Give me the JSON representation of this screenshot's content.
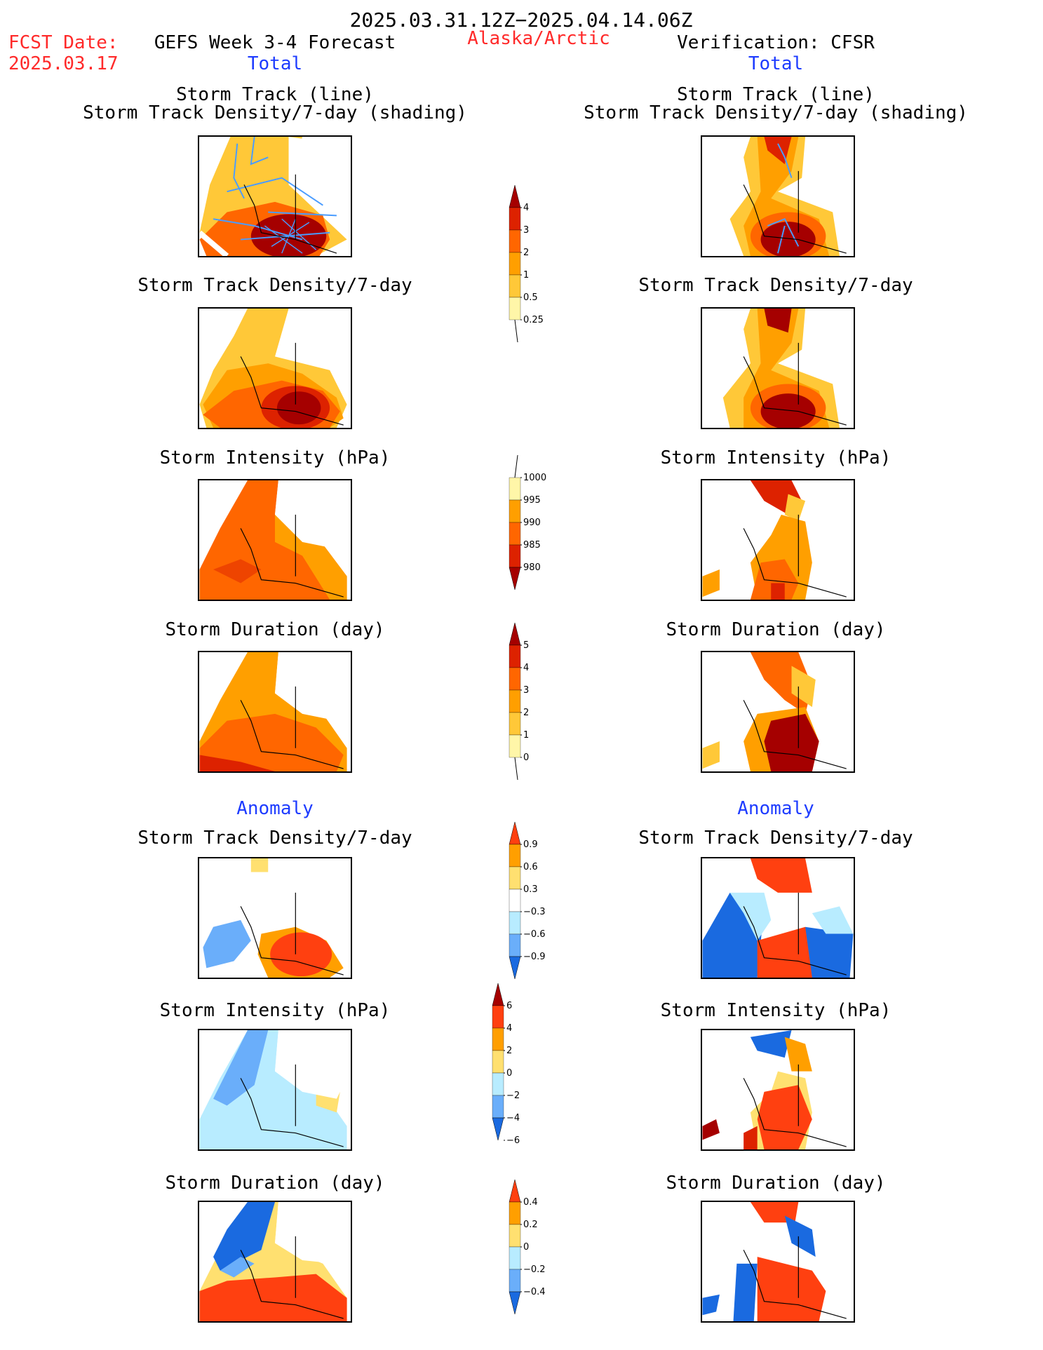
{
  "header": {
    "period": "2025.03.31.12Z−2025.04.14.06Z",
    "fcst_label": "FCST Date:",
    "fcst_date": "2025.03.17",
    "model": "GEFS Week 3-4 Forecast",
    "region": "Alaska/Arctic",
    "verification": "Verification: CFSR",
    "total_left": "Total",
    "total_right": "Total",
    "anomaly_left": "Anomaly",
    "anomaly_right": "Anomaly"
  },
  "panels": {
    "p1_line1": "Storm Track (line)",
    "p1_line2": "Storm Track Density/7-day (shading)",
    "p2": "Storm Track Density/7-day",
    "p3": "Storm Intensity (hPa)",
    "p4": "Storm Duration (day)",
    "p5": "Storm Track Density/7-day",
    "p6": "Storm Intensity (hPa)",
    "p7": "Storm Duration (day)"
  },
  "colorbars": {
    "density": {
      "labels": [
        "4",
        "3",
        "2",
        "1",
        "0.5",
        "0.25"
      ],
      "colors": [
        "#a50000",
        "#dd2200",
        "#ff6600",
        "#ff9f00",
        "#ffc838",
        "#fff6a8"
      ]
    },
    "intensity": {
      "labels": [
        "1000",
        "995",
        "990",
        "985",
        "980"
      ],
      "colors": [
        "#fff6a8",
        "#ff9f00",
        "#ff6600",
        "#dd2200",
        "#a50000"
      ]
    },
    "duration": {
      "labels": [
        "5",
        "4",
        "3",
        "2",
        "1",
        "0"
      ],
      "colors": [
        "#a50000",
        "#dd2200",
        "#ff6600",
        "#ff9f00",
        "#ffc838",
        "#fff6a8"
      ]
    },
    "density_anom": {
      "labels": [
        "0.9",
        "0.6",
        "0.3",
        "−0.3",
        "−0.6",
        "−0.9"
      ],
      "colors": [
        "#ff4010",
        "#ff9f00",
        "#ffe070",
        "#ffffff",
        "#b8ecff",
        "#6aaefa",
        "#1a6ae0"
      ]
    },
    "intensity_anom": {
      "labels": [
        "6",
        "4",
        "2",
        "0",
        "−2",
        "−4",
        "−6"
      ],
      "colors": [
        "#a50000",
        "#ff4010",
        "#ff9f00",
        "#ffe070",
        "#b8ecff",
        "#6aaefa",
        "#1a6ae0"
      ]
    },
    "duration_anom": {
      "labels": [
        "0.4",
        "0.2",
        "0",
        "−0.2",
        "−0.4"
      ],
      "colors": [
        "#ff4010",
        "#ff9f00",
        "#ffe070",
        "#b8ecff",
        "#6aaefa",
        "#1a6ae0"
      ]
    }
  }
}
